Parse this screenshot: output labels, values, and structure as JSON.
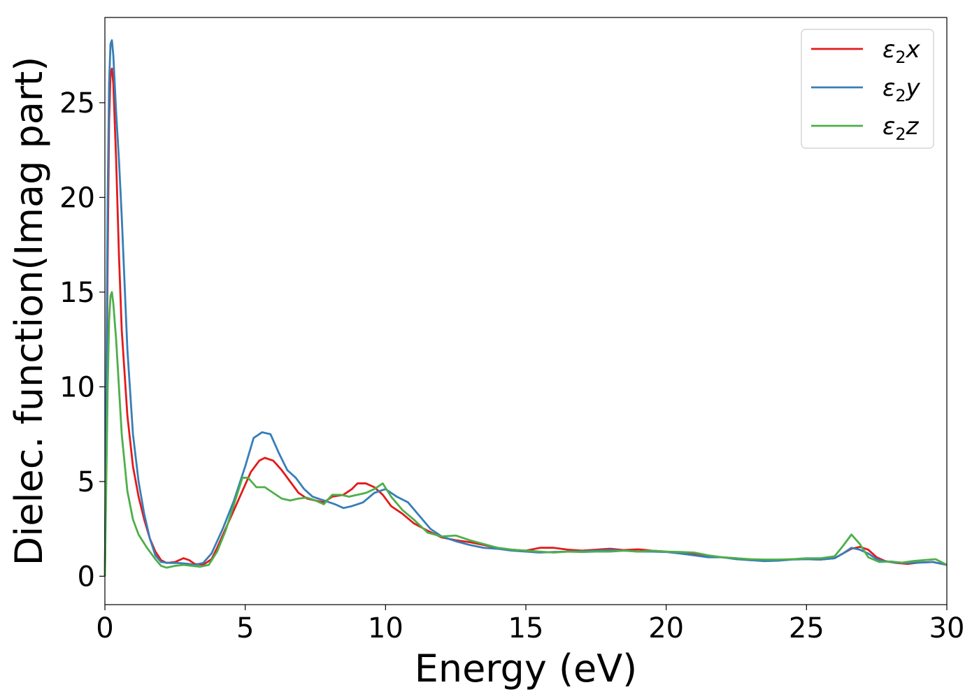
{
  "chart_data": {
    "type": "line",
    "xlabel": "Energy (eV)",
    "ylabel": "Dielec. function(Imag part)",
    "xlim": [
      0,
      30
    ],
    "ylim": [
      -1.5,
      29.5
    ],
    "xticks": [
      0,
      5,
      10,
      15,
      20,
      25,
      30
    ],
    "yticks": [
      0,
      5,
      10,
      15,
      20,
      25
    ],
    "grid": false,
    "legend_position": "top-right",
    "series": [
      {
        "name": "ε2x",
        "base": "ε",
        "sub": "2",
        "axis": "x",
        "color": "#e41a1c",
        "points": [
          [
            0,
            0
          ],
          [
            0.05,
            8
          ],
          [
            0.1,
            17
          ],
          [
            0.15,
            24
          ],
          [
            0.2,
            26.5
          ],
          [
            0.25,
            26.8
          ],
          [
            0.3,
            26
          ],
          [
            0.4,
            22
          ],
          [
            0.5,
            17
          ],
          [
            0.6,
            13
          ],
          [
            0.8,
            8.5
          ],
          [
            1,
            5.8
          ],
          [
            1.2,
            4.2
          ],
          [
            1.4,
            3
          ],
          [
            1.6,
            2
          ],
          [
            1.8,
            1.3
          ],
          [
            2,
            0.85
          ],
          [
            2.2,
            0.7
          ],
          [
            2.5,
            0.75
          ],
          [
            2.8,
            0.95
          ],
          [
            3,
            0.85
          ],
          [
            3.2,
            0.65
          ],
          [
            3.5,
            0.6
          ],
          [
            3.8,
            0.9
          ],
          [
            4,
            1.5
          ],
          [
            4.3,
            2.5
          ],
          [
            4.6,
            3.5
          ],
          [
            4.9,
            4.5
          ],
          [
            5.2,
            5.5
          ],
          [
            5.5,
            6.1
          ],
          [
            5.7,
            6.25
          ],
          [
            6,
            6.1
          ],
          [
            6.3,
            5.6
          ],
          [
            6.6,
            5
          ],
          [
            6.9,
            4.4
          ],
          [
            7.2,
            4.1
          ],
          [
            7.5,
            4
          ],
          [
            7.8,
            3.9
          ],
          [
            8.1,
            4.2
          ],
          [
            8.5,
            4.3
          ],
          [
            8.8,
            4.6
          ],
          [
            9,
            4.9
          ],
          [
            9.3,
            4.9
          ],
          [
            9.6,
            4.7
          ],
          [
            9.9,
            4.3
          ],
          [
            10.2,
            3.7
          ],
          [
            10.6,
            3.3
          ],
          [
            11,
            2.8
          ],
          [
            11.5,
            2.4
          ],
          [
            12,
            2.05
          ],
          [
            12.5,
            1.9
          ],
          [
            13,
            1.8
          ],
          [
            13.5,
            1.65
          ],
          [
            14,
            1.5
          ],
          [
            14.5,
            1.4
          ],
          [
            15,
            1.35
          ],
          [
            15.5,
            1.5
          ],
          [
            16,
            1.5
          ],
          [
            16.5,
            1.4
          ],
          [
            17,
            1.35
          ],
          [
            17.5,
            1.4
          ],
          [
            18,
            1.45
          ],
          [
            18.5,
            1.38
          ],
          [
            19,
            1.42
          ],
          [
            19.5,
            1.35
          ],
          [
            20,
            1.3
          ],
          [
            20.5,
            1.22
          ],
          [
            21,
            1.15
          ],
          [
            21.5,
            1.05
          ],
          [
            22,
            1.0
          ],
          [
            22.5,
            0.95
          ],
          [
            23,
            0.85
          ],
          [
            23.5,
            0.85
          ],
          [
            24,
            0.85
          ],
          [
            24.5,
            0.9
          ],
          [
            25,
            0.9
          ],
          [
            25.5,
            0.88
          ],
          [
            26,
            0.95
          ],
          [
            26.3,
            1.2
          ],
          [
            26.6,
            1.45
          ],
          [
            26.9,
            1.55
          ],
          [
            27.2,
            1.4
          ],
          [
            27.5,
            1.0
          ],
          [
            27.8,
            0.8
          ],
          [
            28.2,
            0.7
          ],
          [
            28.6,
            0.65
          ],
          [
            29,
            0.72
          ],
          [
            29.5,
            0.75
          ],
          [
            30,
            0.6
          ]
        ]
      },
      {
        "name": "ε2y",
        "base": "ε",
        "sub": "2",
        "axis": "y",
        "color": "#377eb8",
        "points": [
          [
            0,
            0
          ],
          [
            0.05,
            10
          ],
          [
            0.1,
            20
          ],
          [
            0.15,
            26
          ],
          [
            0.2,
            28.1
          ],
          [
            0.25,
            28.3
          ],
          [
            0.3,
            27.5
          ],
          [
            0.4,
            24.5
          ],
          [
            0.5,
            22
          ],
          [
            0.6,
            19
          ],
          [
            0.8,
            12
          ],
          [
            1,
            7.5
          ],
          [
            1.2,
            5
          ],
          [
            1.4,
            3.3
          ],
          [
            1.6,
            2
          ],
          [
            1.8,
            1.1
          ],
          [
            2,
            0.75
          ],
          [
            2.3,
            0.7
          ],
          [
            2.6,
            0.7
          ],
          [
            3,
            0.65
          ],
          [
            3.2,
            0.6
          ],
          [
            3.5,
            0.7
          ],
          [
            3.8,
            1.2
          ],
          [
            4.2,
            2.5
          ],
          [
            4.6,
            4
          ],
          [
            5,
            5.8
          ],
          [
            5.3,
            7.3
          ],
          [
            5.6,
            7.6
          ],
          [
            5.9,
            7.5
          ],
          [
            6.2,
            6.5
          ],
          [
            6.5,
            5.6
          ],
          [
            6.8,
            5.2
          ],
          [
            7.1,
            4.6
          ],
          [
            7.4,
            4.2
          ],
          [
            7.8,
            4
          ],
          [
            8.2,
            3.8
          ],
          [
            8.5,
            3.6
          ],
          [
            8.8,
            3.7
          ],
          [
            9.2,
            3.9
          ],
          [
            9.6,
            4.4
          ],
          [
            10,
            4.6
          ],
          [
            10.4,
            4.2
          ],
          [
            10.8,
            3.9
          ],
          [
            11.2,
            3.2
          ],
          [
            11.6,
            2.5
          ],
          [
            12,
            2.1
          ],
          [
            12.5,
            1.85
          ],
          [
            13,
            1.65
          ],
          [
            13.5,
            1.5
          ],
          [
            14,
            1.45
          ],
          [
            14.5,
            1.35
          ],
          [
            15,
            1.3
          ],
          [
            15.5,
            1.25
          ],
          [
            16,
            1.28
          ],
          [
            16.5,
            1.3
          ],
          [
            17,
            1.32
          ],
          [
            17.5,
            1.35
          ],
          [
            18,
            1.38
          ],
          [
            18.5,
            1.35
          ],
          [
            19,
            1.3
          ],
          [
            19.5,
            1.3
          ],
          [
            20,
            1.28
          ],
          [
            20.5,
            1.2
          ],
          [
            21,
            1.1
          ],
          [
            21.5,
            1.0
          ],
          [
            22,
            1.0
          ],
          [
            22.5,
            0.9
          ],
          [
            23,
            0.85
          ],
          [
            23.5,
            0.8
          ],
          [
            24,
            0.82
          ],
          [
            24.5,
            0.88
          ],
          [
            25,
            0.9
          ],
          [
            25.5,
            0.88
          ],
          [
            26,
            0.95
          ],
          [
            26.3,
            1.2
          ],
          [
            26.6,
            1.5
          ],
          [
            26.9,
            1.4
          ],
          [
            27.2,
            1.2
          ],
          [
            27.5,
            0.9
          ],
          [
            27.8,
            0.78
          ],
          [
            28.2,
            0.72
          ],
          [
            28.6,
            0.7
          ],
          [
            29,
            0.72
          ],
          [
            29.5,
            0.75
          ],
          [
            30,
            0.6
          ]
        ]
      },
      {
        "name": "ε2z",
        "base": "ε",
        "sub": "2",
        "axis": "z",
        "color": "#4daf4a",
        "points": [
          [
            0,
            0
          ],
          [
            0.05,
            5
          ],
          [
            0.1,
            10
          ],
          [
            0.15,
            13.5
          ],
          [
            0.2,
            14.8
          ],
          [
            0.25,
            15
          ],
          [
            0.3,
            14.4
          ],
          [
            0.4,
            12.5
          ],
          [
            0.5,
            10
          ],
          [
            0.6,
            7.5
          ],
          [
            0.8,
            4.5
          ],
          [
            1,
            3
          ],
          [
            1.2,
            2.2
          ],
          [
            1.5,
            1.5
          ],
          [
            1.8,
            0.9
          ],
          [
            2,
            0.55
          ],
          [
            2.2,
            0.45
          ],
          [
            2.5,
            0.55
          ],
          [
            2.8,
            0.6
          ],
          [
            3.1,
            0.55
          ],
          [
            3.4,
            0.5
          ],
          [
            3.7,
            0.6
          ],
          [
            4,
            1.3
          ],
          [
            4.3,
            2.4
          ],
          [
            4.6,
            3.8
          ],
          [
            4.9,
            5.2
          ],
          [
            5.1,
            5.2
          ],
          [
            5.4,
            4.7
          ],
          [
            5.7,
            4.7
          ],
          [
            6,
            4.4
          ],
          [
            6.3,
            4.1
          ],
          [
            6.6,
            4.0
          ],
          [
            6.9,
            4.1
          ],
          [
            7.2,
            4.15
          ],
          [
            7.5,
            4.0
          ],
          [
            7.8,
            3.8
          ],
          [
            8.1,
            4.3
          ],
          [
            8.4,
            4.3
          ],
          [
            8.7,
            4.2
          ],
          [
            9,
            4.3
          ],
          [
            9.3,
            4.4
          ],
          [
            9.6,
            4.6
          ],
          [
            9.9,
            4.9
          ],
          [
            10.2,
            4.2
          ],
          [
            10.6,
            3.5
          ],
          [
            11,
            3.0
          ],
          [
            11.5,
            2.3
          ],
          [
            12,
            2.1
          ],
          [
            12.5,
            2.15
          ],
          [
            13,
            1.9
          ],
          [
            13.5,
            1.7
          ],
          [
            14,
            1.5
          ],
          [
            14.5,
            1.4
          ],
          [
            15,
            1.35
          ],
          [
            15.5,
            1.3
          ],
          [
            16,
            1.25
          ],
          [
            16.5,
            1.3
          ],
          [
            17,
            1.28
          ],
          [
            17.5,
            1.3
          ],
          [
            18,
            1.3
          ],
          [
            18.5,
            1.35
          ],
          [
            19,
            1.3
          ],
          [
            19.5,
            1.35
          ],
          [
            20,
            1.3
          ],
          [
            20.5,
            1.28
          ],
          [
            21,
            1.25
          ],
          [
            21.5,
            1.1
          ],
          [
            22,
            1.0
          ],
          [
            22.5,
            0.95
          ],
          [
            23,
            0.9
          ],
          [
            23.5,
            0.88
          ],
          [
            24,
            0.88
          ],
          [
            24.5,
            0.9
          ],
          [
            25,
            0.95
          ],
          [
            25.5,
            0.95
          ],
          [
            26,
            1.05
          ],
          [
            26.3,
            1.6
          ],
          [
            26.6,
            2.2
          ],
          [
            26.9,
            1.7
          ],
          [
            27.2,
            1.0
          ],
          [
            27.6,
            0.75
          ],
          [
            28,
            0.78
          ],
          [
            28.4,
            0.72
          ],
          [
            28.8,
            0.8
          ],
          [
            29.2,
            0.85
          ],
          [
            29.6,
            0.9
          ],
          [
            30,
            0.6
          ]
        ]
      }
    ]
  }
}
